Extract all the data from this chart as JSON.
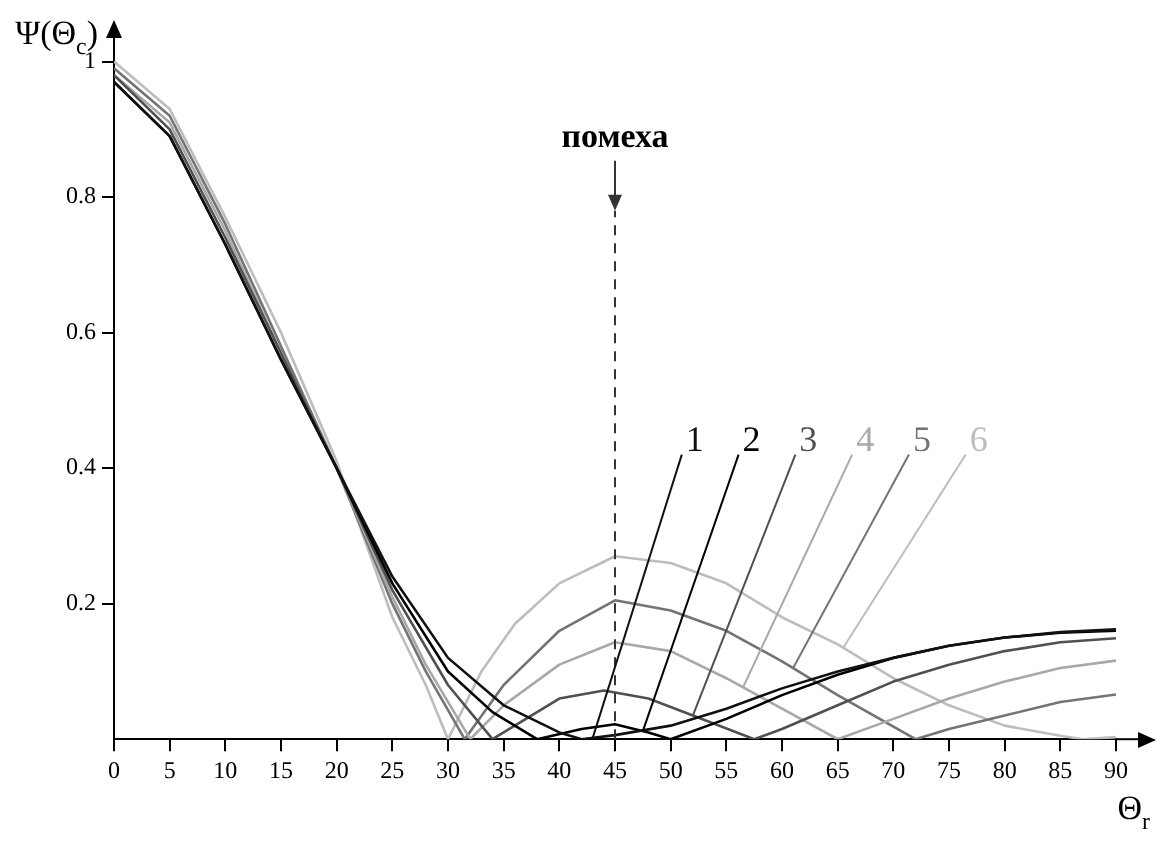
{
  "chart_data": {
    "type": "line",
    "ylabel": "Ψ(Θ$_{c}$)",
    "xlabel": "Θ$_{r}$",
    "xlim": [
      0,
      90
    ],
    "xticks": [
      0,
      5,
      10,
      15,
      20,
      25,
      30,
      35,
      40,
      45,
      50,
      55,
      60,
      65,
      70,
      75,
      80,
      85,
      90
    ],
    "ylim": [
      0,
      1.02
    ],
    "yticks": [
      0.2,
      0.4,
      0.6,
      0.8,
      1
    ],
    "grid": false,
    "legend": false,
    "marker": "none",
    "line_style": "solid",
    "ref_lines": [
      {
        "axis": "x",
        "value": 45,
        "label": "помеха",
        "line_style": "dashed",
        "color": "#333333"
      }
    ],
    "series": [
      {
        "name": "1",
        "color": "#111111",
        "x": [
          0,
          5,
          10,
          15,
          20,
          25,
          30,
          35,
          40,
          42,
          45,
          50,
          55,
          60,
          65,
          70,
          75,
          80,
          85,
          90
        ],
        "values": [
          0.97,
          0.89,
          0.73,
          0.56,
          0.4,
          0.24,
          0.12,
          0.05,
          0.01,
          0,
          0.006,
          0.02,
          0.045,
          0.075,
          0.1,
          0.12,
          0.138,
          0.15,
          0.158,
          0.162
        ]
      },
      {
        "name": "2",
        "color": "#000000",
        "x": [
          0,
          5,
          10,
          15,
          20,
          25,
          30,
          34,
          38,
          42,
          45,
          48,
          50,
          55,
          60,
          65,
          70,
          75,
          80,
          85,
          90
        ],
        "values": [
          0.97,
          0.89,
          0.73,
          0.56,
          0.4,
          0.23,
          0.1,
          0.04,
          0,
          0.015,
          0.022,
          0.01,
          0,
          0.03,
          0.065,
          0.095,
          0.12,
          0.138,
          0.15,
          0.157,
          0.16
        ]
      },
      {
        "name": "3",
        "color": "#505050",
        "x": [
          0,
          5,
          10,
          15,
          20,
          25,
          30,
          34,
          37,
          40,
          44,
          48,
          52,
          57.5,
          60,
          65,
          70,
          75,
          80,
          85,
          90
        ],
        "values": [
          0.98,
          0.9,
          0.74,
          0.57,
          0.4,
          0.22,
          0.08,
          0,
          0.03,
          0.06,
          0.072,
          0.06,
          0.035,
          0,
          0.015,
          0.05,
          0.085,
          0.11,
          0.13,
          0.143,
          0.149
        ]
      },
      {
        "name": "4",
        "color": "#a8a8a8",
        "x": [
          0,
          5,
          10,
          15,
          20,
          25,
          28,
          32,
          35,
          40,
          45,
          50,
          55,
          60,
          65,
          70,
          75,
          80,
          85,
          90
        ],
        "values": [
          0.98,
          0.91,
          0.75,
          0.57,
          0.4,
          0.21,
          0.11,
          0,
          0.05,
          0.11,
          0.143,
          0.13,
          0.09,
          0.045,
          0,
          0.03,
          0.06,
          0.085,
          0.105,
          0.116
        ]
      },
      {
        "name": "5",
        "color": "#747474",
        "x": [
          0,
          5,
          10,
          15,
          20,
          25,
          28,
          31.5,
          35,
          40,
          45,
          50,
          55,
          60,
          65,
          72,
          75,
          80,
          85,
          90
        ],
        "values": [
          0.99,
          0.92,
          0.76,
          0.58,
          0.4,
          0.2,
          0.1,
          0,
          0.08,
          0.16,
          0.205,
          0.19,
          0.16,
          0.115,
          0.065,
          0,
          0.015,
          0.035,
          0.055,
          0.066
        ]
      },
      {
        "name": "6",
        "color": "#bdbdbd",
        "x": [
          0,
          5,
          10,
          15,
          20,
          25,
          28,
          30,
          33,
          36,
          40,
          45,
          50,
          55,
          60,
          65,
          70,
          75,
          80,
          85,
          87,
          90
        ],
        "values": [
          1.0,
          0.93,
          0.77,
          0.6,
          0.41,
          0.18,
          0.08,
          0,
          0.1,
          0.17,
          0.23,
          0.27,
          0.26,
          0.23,
          0.18,
          0.14,
          0.09,
          0.05,
          0.02,
          0.005,
          0,
          0.003
        ]
      }
    ]
  }
}
